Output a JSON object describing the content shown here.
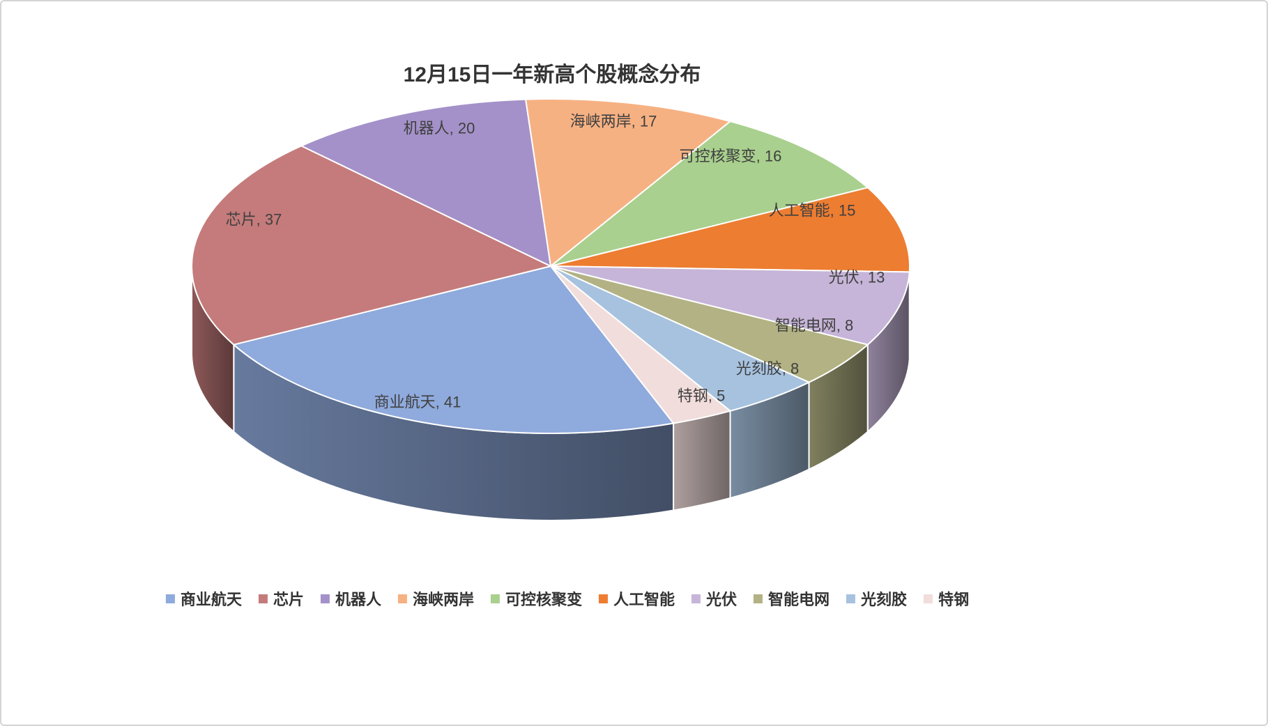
{
  "chart_data": {
    "type": "pie",
    "style": "3d-pie",
    "title": "12月15日一年新高个股概念分布",
    "label_format": "name, value",
    "legend_position": "bottom",
    "rotation_deg": 160,
    "series": [
      {
        "name": "商业航天",
        "value": 41
      },
      {
        "name": "芯片",
        "value": 37
      },
      {
        "name": "机器人",
        "value": 20
      },
      {
        "name": "海峡两岸",
        "value": 17
      },
      {
        "name": "可控核聚变",
        "value": 16
      },
      {
        "name": "人工智能",
        "value": 15
      },
      {
        "name": "光伏",
        "value": 13
      },
      {
        "name": "智能电网",
        "value": 8
      },
      {
        "name": "光刻胶",
        "value": 8
      },
      {
        "name": "特钢",
        "value": 5
      }
    ],
    "colors": [
      "#8FAADC",
      "#C57B7B",
      "#A491C9",
      "#F6B183",
      "#A9D08E",
      "#ED7D31",
      "#C6B5D8",
      "#B2B284",
      "#A6C2DF",
      "#F1DDDB"
    ],
    "label_color": "#3f3f3f",
    "title_color": "#333333"
  }
}
